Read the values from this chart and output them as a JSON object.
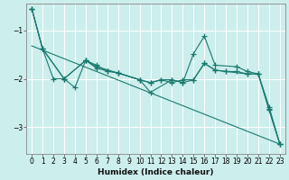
{
  "xlabel": "Humidex (Indice chaleur)",
  "bg_color": "#cceeed",
  "grid_color": "#b0dedd",
  "line_color": "#1a7a6e",
  "xlim": [
    -0.5,
    23.5
  ],
  "ylim": [
    -3.55,
    -0.45
  ],
  "yticks": [
    -3,
    -2,
    -1
  ],
  "xticks": [
    0,
    1,
    2,
    3,
    4,
    5,
    6,
    7,
    8,
    9,
    10,
    11,
    12,
    13,
    14,
    15,
    16,
    17,
    18,
    19,
    20,
    21,
    22,
    23
  ],
  "series1_x": [
    0,
    1,
    2,
    3,
    5,
    6,
    7,
    8,
    10,
    11,
    12,
    13,
    14,
    15,
    16,
    17,
    18,
    19,
    20,
    21,
    22,
    23
  ],
  "series1_y": [
    -0.55,
    -1.38,
    -2.0,
    -2.0,
    -1.62,
    -1.78,
    -1.84,
    -1.88,
    -2.02,
    -2.08,
    -2.02,
    -2.02,
    -2.08,
    -2.02,
    -1.68,
    -1.82,
    -1.85,
    -1.85,
    -1.9,
    -1.9,
    -2.62,
    -3.35
  ],
  "series2_x": [
    0,
    1,
    3,
    4,
    5,
    6,
    7,
    8,
    10,
    11,
    13,
    14,
    15,
    16,
    17,
    19,
    20,
    21,
    22,
    23
  ],
  "series2_y": [
    -0.55,
    -1.38,
    -2.0,
    -2.18,
    -1.62,
    -1.72,
    -1.84,
    -1.88,
    -2.02,
    -2.28,
    -2.02,
    -2.08,
    -1.48,
    -1.12,
    -1.72,
    -1.75,
    -1.85,
    -1.9,
    -2.58,
    -3.35
  ],
  "series3_x": [
    0,
    1,
    3,
    5,
    6,
    8,
    10,
    11,
    12,
    13,
    14,
    15,
    16,
    17,
    18,
    20,
    21,
    22,
    23
  ],
  "series3_y": [
    -0.55,
    -1.38,
    -2.0,
    -1.62,
    -1.75,
    -1.88,
    -2.02,
    -2.08,
    -2.02,
    -2.08,
    -2.02,
    -2.02,
    -1.68,
    -1.82,
    -1.85,
    -1.9,
    -1.9,
    -2.65,
    -3.35
  ],
  "trend_x": [
    0,
    23
  ],
  "trend_y": [
    -1.32,
    -3.35
  ],
  "xlabel_fontsize": 6.5,
  "tick_fontsize": 5.5
}
